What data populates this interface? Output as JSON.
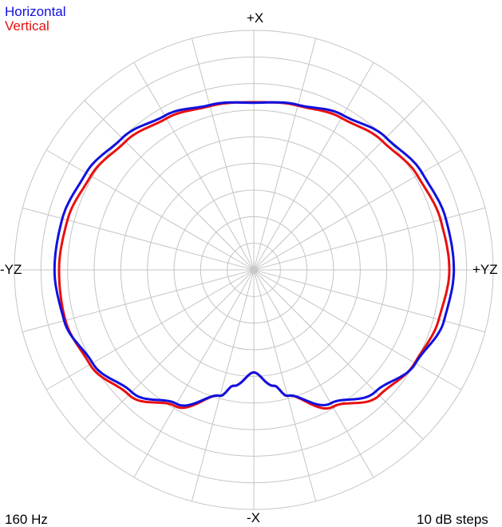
{
  "chart_data": {
    "type": "polar",
    "frequency_label": "160 Hz",
    "step_label": "10 dB steps",
    "angle_labels": {
      "top": "+X",
      "right": "+YZ",
      "bottom": "-X",
      "left": "-YZ"
    },
    "rings_db": [
      0,
      -10,
      -20,
      -30,
      -40,
      -50,
      -60,
      -70,
      -80
    ],
    "radial_lines_every_deg": 15,
    "grid": true,
    "legend_position": "top-left",
    "angle_convention": "degrees clockwise from +X (top)",
    "series": [
      {
        "name": "Horizontal",
        "color": "#1010e0",
        "angles_deg": [
          0,
          15,
          30,
          45,
          60,
          75,
          90,
          105,
          120,
          135,
          150,
          165,
          170,
          180,
          190,
          195,
          210,
          225,
          240,
          255,
          270,
          285,
          300,
          315,
          330,
          345
        ],
        "level_db": [
          -27.2,
          -25.8,
          -22.9,
          -19.7,
          -17.0,
          -15.3,
          -14.8,
          -16.0,
          -19.8,
          -25.3,
          -32.1,
          -41.0,
          -45.8,
          -51.5,
          -45.8,
          -41.0,
          -31.9,
          -25.1,
          -20.0,
          -16.2,
          -15.1,
          -15.5,
          -17.2,
          -20.0,
          -23.1,
          -25.9
        ]
      },
      {
        "name": "Vertical",
        "color": "#e81010",
        "angles_deg": [
          0,
          15,
          30,
          45,
          60,
          75,
          90,
          105,
          120,
          135,
          150,
          165,
          170,
          180,
          190,
          195,
          210,
          225,
          240,
          255,
          270,
          285,
          300,
          315,
          330,
          345
        ],
        "level_db": [
          -27.0,
          -26.1,
          -24.1,
          -21.6,
          -19.0,
          -17.3,
          -16.5,
          -18.0,
          -20.1,
          -23.3,
          -30.6,
          -41.0,
          -45.8,
          -51.5,
          -45.8,
          -41.0,
          -30.9,
          -23.6,
          -18.9,
          -16.7,
          -16.8,
          -17.5,
          -19.3,
          -21.8,
          -24.3,
          -26.3
        ]
      }
    ]
  }
}
